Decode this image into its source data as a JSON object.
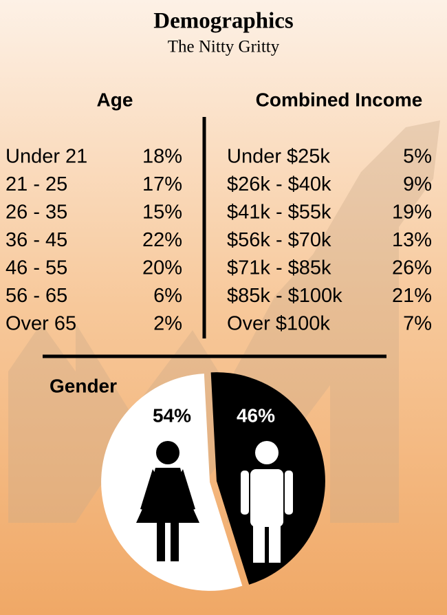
{
  "header": {
    "title": "Demographics",
    "subtitle": "The Nitty Gritty"
  },
  "age": {
    "title": "Age",
    "rows": [
      [
        "Under 21",
        "18%"
      ],
      [
        "21 - 25",
        "17%"
      ],
      [
        "26 - 35",
        "15%"
      ],
      [
        "36 - 45",
        "22%"
      ],
      [
        "46 - 55",
        "20%"
      ],
      [
        "56 - 65",
        "6%"
      ],
      [
        "Over 65",
        "2%"
      ]
    ]
  },
  "income": {
    "title": "Combined Income",
    "rows": [
      [
        "Under $25k",
        "5%"
      ],
      [
        "$26k - $40k",
        "9%"
      ],
      [
        "$41k - $55k",
        "19%"
      ],
      [
        "$56k - $70k",
        "13%"
      ],
      [
        "$71k - $85k",
        "26%"
      ],
      [
        "$85k - $100k",
        "21%"
      ],
      [
        "Over $100k",
        "7%"
      ]
    ]
  },
  "chart_data": {
    "type": "pie",
    "title": "Gender",
    "values": [
      54,
      46
    ],
    "value_labels": [
      "54%",
      "46%"
    ],
    "colors": [
      "#ffffff",
      "#000000"
    ]
  }
}
